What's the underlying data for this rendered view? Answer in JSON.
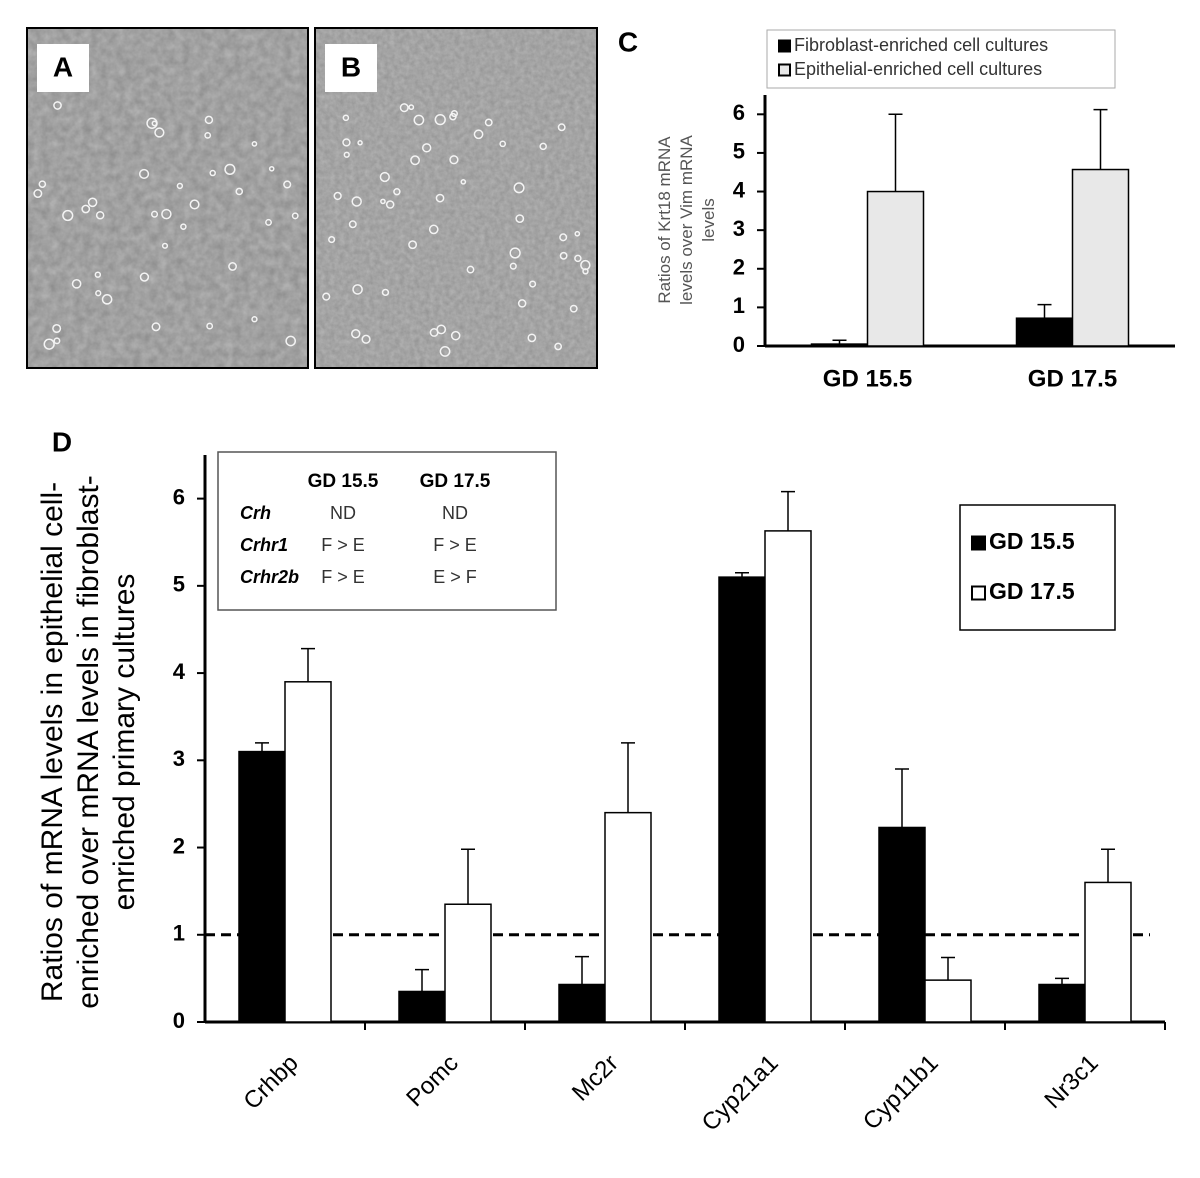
{
  "panel_labels": [
    "A",
    "B",
    "C",
    "D"
  ],
  "chart_data": [
    {
      "type": "bar",
      "ylabel": [
        "Ratios of Krt18 mRNA",
        "levels over Vim mRNA",
        "levels"
      ],
      "categories": [
        "GD 15.5",
        "GD 17.5"
      ],
      "series": [
        {
          "name": "Fibroblast-enriched cell cultures",
          "color": "#000000",
          "values": [
            0.05,
            0.72
          ],
          "errors": [
            0.1,
            0.35
          ]
        },
        {
          "name": "Epithelial-enriched cell cultures",
          "color": "#e8e8e8",
          "values": [
            4.0,
            4.57
          ],
          "errors": [
            2.0,
            1.55
          ]
        }
      ],
      "ylim": [
        0,
        6.5
      ],
      "yticks": [
        0,
        1,
        2,
        3,
        4,
        5,
        6
      ],
      "grid": false,
      "legend": "top"
    },
    {
      "type": "bar",
      "ylabel": [
        "Ratios of  mRNA levels in epithelial cell-",
        "enriched over mRNA levels in fibroblast-",
        "enriched primary cultures"
      ],
      "categories": [
        "Crhbp",
        "Pomc",
        "Mc2r",
        "Cyp21a1",
        "Cyp11b1",
        "Nr3c1"
      ],
      "series": [
        {
          "name": "GD 15.5",
          "color": "#000000",
          "values": [
            3.1,
            0.35,
            0.43,
            5.1,
            2.23,
            0.43
          ],
          "errors": [
            0.1,
            0.25,
            0.32,
            0.05,
            0.67,
            0.07
          ]
        },
        {
          "name": "GD 17.5",
          "color": "#ffffff",
          "values": [
            3.9,
            1.35,
            2.4,
            5.63,
            0.48,
            1.6
          ],
          "errors": [
            0.38,
            0.63,
            0.8,
            0.45,
            0.26,
            0.38
          ]
        }
      ],
      "ylim": [
        0,
        6.5
      ],
      "yticks": [
        0,
        1,
        2,
        3,
        4,
        5,
        6
      ],
      "grid": false,
      "legend": "right",
      "reference_line": 1,
      "annotation_table": {
        "columns": [
          "GD 15.5",
          "GD 17.5"
        ],
        "rows": [
          [
            "Crh",
            "ND",
            "ND"
          ],
          [
            "Crhr1",
            "F > E",
            "F > E"
          ],
          [
            "Crhr2b",
            "F > E",
            "E > F"
          ]
        ]
      }
    }
  ]
}
